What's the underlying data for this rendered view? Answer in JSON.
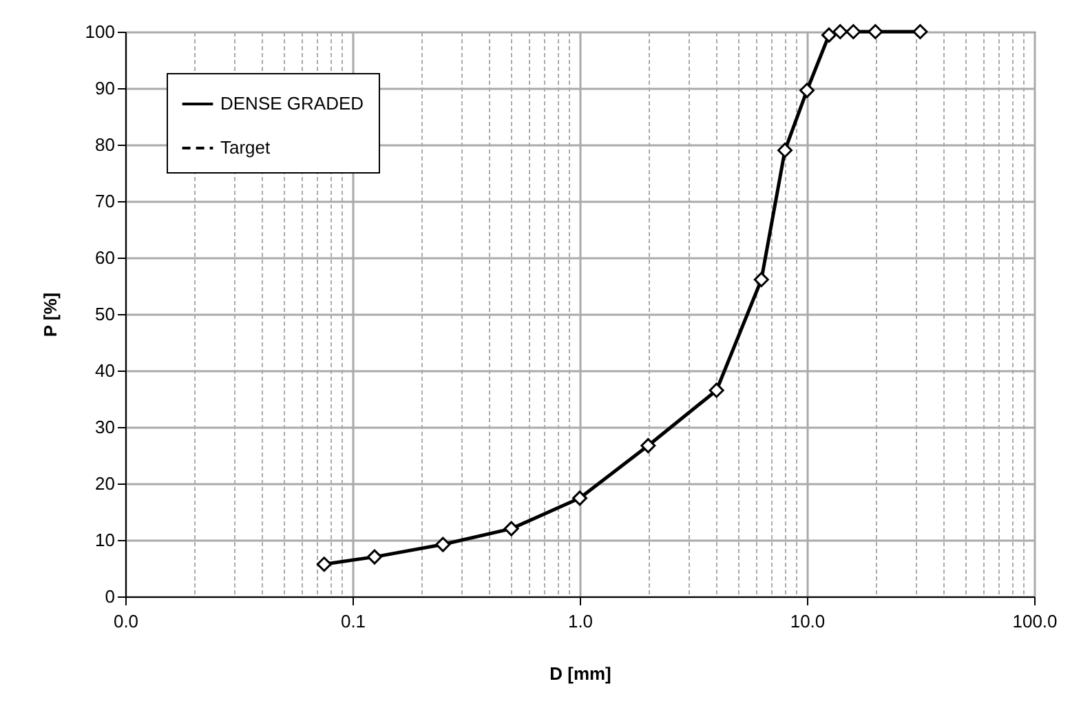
{
  "chart_data": {
    "type": "line",
    "xlabel": "D [mm]",
    "ylabel": "P [%]",
    "x": [
      0.075,
      0.125,
      0.25,
      0.5,
      1,
      2,
      4,
      6.3,
      8,
      10,
      12.5,
      14,
      16,
      20,
      31.5
    ],
    "series": [
      {
        "name": "DENSE GRADED",
        "color": "#000000",
        "line_style": "solid",
        "marker": "diamond",
        "values": [
          5.7,
          7.0,
          9.2,
          12.0,
          17.4,
          26.7,
          36.5,
          56.1,
          79.0,
          89.6,
          99.4,
          100,
          100,
          100,
          100
        ]
      },
      {
        "name": "Target",
        "color": "#000000",
        "line_style": "dashed",
        "marker": "none",
        "values": [
          null,
          null,
          null,
          null,
          null,
          null,
          null,
          null,
          null,
          null,
          null,
          null,
          null,
          null,
          null
        ]
      }
    ],
    "log": "x",
    "xlim": [
      0.01,
      100
    ],
    "xticks": [
      {
        "value": 0.01,
        "label": "0.0"
      },
      {
        "value": 0.1,
        "label": "0.1"
      },
      {
        "value": 1,
        "label": "1.0"
      },
      {
        "value": 10,
        "label": "10.0"
      },
      {
        "value": 100,
        "label": "100.0"
      }
    ],
    "ylim": [
      0,
      100
    ],
    "yticks": [
      0,
      10,
      20,
      30,
      40,
      50,
      60,
      70,
      80,
      90,
      100
    ],
    "grid": true,
    "legend": "top left"
  }
}
